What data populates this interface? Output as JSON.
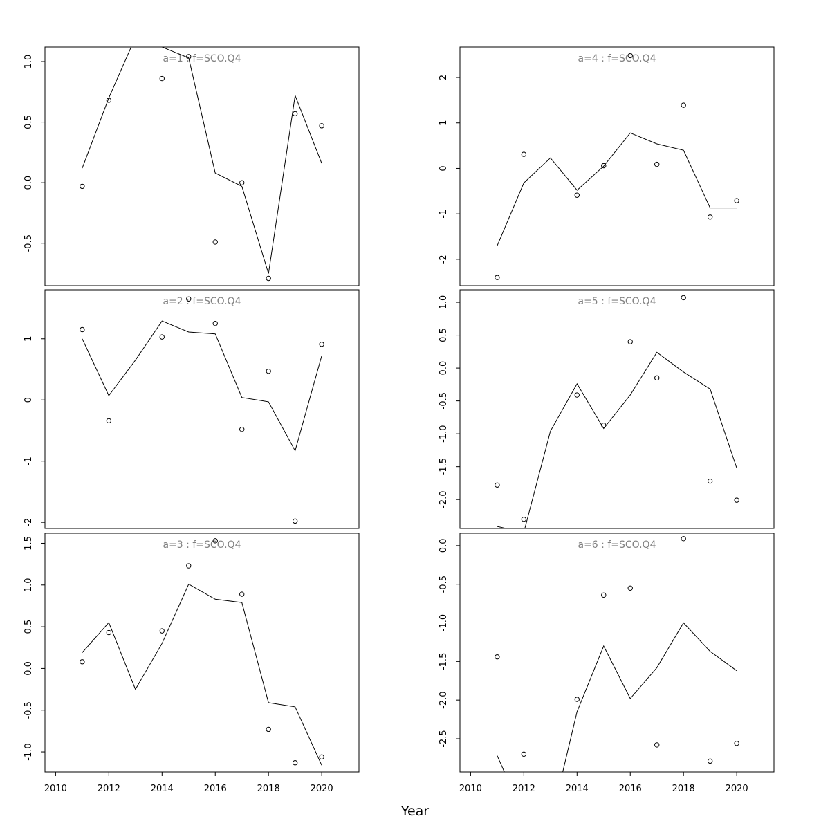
{
  "figure": {
    "xlabel": "Year"
  },
  "style": {
    "line_color": "#000000",
    "point_color": "#000000",
    "panel_title_color": "#808080",
    "axis_color": "#000000"
  },
  "chart_data": [
    {
      "type": "line",
      "panel": "a=1",
      "title": "a=1 : f=SCO.Q4",
      "xlim": [
        2009.6,
        2021.4
      ],
      "ylim": [
        -0.85,
        1.12
      ],
      "yticks": [
        -0.5,
        0.0,
        0.5,
        1.0
      ],
      "yticklabels": [
        "-0.5",
        "0.0",
        "0.5",
        "1.0"
      ],
      "xticks": [],
      "xticklabels": [],
      "series": [
        {
          "kind": "line",
          "x": [
            2011,
            2012,
            2013,
            2014,
            2015,
            2016,
            2017,
            2018,
            2019,
            2020
          ],
          "values": [
            0.12,
            0.7,
            1.2,
            1.12,
            1.03,
            0.08,
            -0.03,
            -0.75,
            0.72,
            0.16
          ]
        },
        {
          "kind": "points",
          "x": [
            2011,
            2012,
            2014,
            2015,
            2016,
            2017,
            2018,
            2019,
            2020
          ],
          "values": [
            -0.03,
            0.68,
            0.86,
            1.04,
            -0.49,
            0.0,
            -0.79,
            0.57,
            0.47
          ]
        }
      ]
    },
    {
      "type": "line",
      "panel": "a=2",
      "title": "a=2 : f=SCO.Q4",
      "xlim": [
        2009.6,
        2021.4
      ],
      "ylim": [
        -2.1,
        1.8
      ],
      "yticks": [
        -2,
        -1,
        0,
        1
      ],
      "yticklabels": [
        "-2",
        "-1",
        "0",
        "1"
      ],
      "xticks": [],
      "xticklabels": [],
      "series": [
        {
          "kind": "line",
          "x": [
            2011,
            2012,
            2013,
            2014,
            2015,
            2016,
            2017,
            2018,
            2019,
            2020
          ],
          "values": [
            1.0,
            0.07,
            0.65,
            1.29,
            1.11,
            1.08,
            0.04,
            -0.03,
            -0.83,
            0.72
          ]
        },
        {
          "kind": "points",
          "x": [
            2011,
            2012,
            2014,
            2015,
            2016,
            2017,
            2018,
            2019,
            2020
          ],
          "values": [
            1.15,
            -0.34,
            1.03,
            1.65,
            1.25,
            -0.48,
            0.47,
            -1.98,
            0.91
          ]
        }
      ]
    },
    {
      "type": "line",
      "panel": "a=3",
      "title": "a=3 : f=SCO.Q4",
      "xlim": [
        2009.6,
        2021.4
      ],
      "ylim": [
        -1.24,
        1.62
      ],
      "yticks": [
        -1.0,
        -0.5,
        0.0,
        0.5,
        1.0,
        1.5
      ],
      "yticklabels": [
        "-1.0",
        "-0.5",
        "0.0",
        "0.5",
        "1.0",
        "1.5"
      ],
      "xticks": [
        2010,
        2012,
        2014,
        2016,
        2018,
        2020
      ],
      "xticklabels": [
        "2010",
        "2012",
        "2014",
        "2016",
        "2018",
        "2020"
      ],
      "series": [
        {
          "kind": "line",
          "x": [
            2011,
            2012,
            2013,
            2014,
            2015,
            2016,
            2017,
            2018,
            2019,
            2020
          ],
          "values": [
            0.19,
            0.55,
            -0.25,
            0.3,
            1.01,
            0.83,
            0.79,
            -0.41,
            -0.46,
            -1.16
          ]
        },
        {
          "kind": "points",
          "x": [
            2011,
            2012,
            2014,
            2015,
            2016,
            2017,
            2018,
            2019,
            2020
          ],
          "values": [
            0.08,
            0.43,
            0.45,
            1.23,
            1.53,
            0.89,
            -0.73,
            -1.13,
            -1.06
          ]
        }
      ]
    },
    {
      "type": "line",
      "panel": "a=4",
      "title": "a=4 : f=SCO.Q4",
      "xlim": [
        2009.6,
        2021.4
      ],
      "ylim": [
        -2.58,
        2.67
      ],
      "yticks": [
        -2,
        -1,
        0,
        1,
        2
      ],
      "yticklabels": [
        "-2",
        "-1",
        "0",
        "1",
        "2"
      ],
      "xticks": [],
      "xticklabels": [],
      "series": [
        {
          "kind": "line",
          "x": [
            2011,
            2012,
            2013,
            2014,
            2015,
            2016,
            2017,
            2018,
            2019,
            2020
          ],
          "values": [
            -1.7,
            -0.32,
            0.23,
            -0.48,
            0.05,
            0.78,
            0.54,
            0.4,
            -0.87,
            -0.87
          ]
        },
        {
          "kind": "points",
          "x": [
            2011,
            2012,
            2014,
            2015,
            2016,
            2017,
            2018,
            2019,
            2020
          ],
          "values": [
            -2.4,
            0.31,
            -0.59,
            0.06,
            2.48,
            0.09,
            1.39,
            -1.07,
            -0.71
          ]
        }
      ]
    },
    {
      "type": "line",
      "panel": "a=5",
      "title": "a=5 : f=SCO.Q4",
      "xlim": [
        2009.6,
        2021.4
      ],
      "ylim": [
        -2.44,
        1.19
      ],
      "yticks": [
        -2.0,
        -1.5,
        -1.0,
        -0.5,
        0.0,
        0.5,
        1.0
      ],
      "yticklabels": [
        "-2.0",
        "-1.5",
        "-1.0",
        "-0.5",
        "0.0",
        "0.5",
        "1.0"
      ],
      "xticks": [],
      "xticklabels": [],
      "series": [
        {
          "kind": "line",
          "x": [
            2011,
            2012,
            2013,
            2014,
            2015,
            2016,
            2017,
            2018,
            2019,
            2020
          ],
          "values": [
            -2.41,
            -2.5,
            -0.96,
            -0.24,
            -0.92,
            -0.41,
            0.24,
            -0.06,
            -0.32,
            -1.52
          ]
        },
        {
          "kind": "points",
          "x": [
            2011,
            2012,
            2014,
            2015,
            2016,
            2017,
            2018,
            2019,
            2020
          ],
          "values": [
            -1.78,
            -2.3,
            -0.41,
            -0.87,
            0.4,
            -0.15,
            1.07,
            -1.72,
            -2.01
          ]
        }
      ]
    },
    {
      "type": "line",
      "panel": "a=6",
      "title": "a=6 : f=SCO.Q4",
      "xlim": [
        2009.6,
        2021.4
      ],
      "ylim": [
        -2.93,
        0.16
      ],
      "yticks": [
        -2.5,
        -2.0,
        -1.5,
        -1.0,
        -0.5,
        0.0
      ],
      "yticklabels": [
        "-2.5",
        "-2.0",
        "-1.5",
        "-1.0",
        "-0.5",
        "0.0"
      ],
      "xticks": [
        2010,
        2012,
        2014,
        2016,
        2018,
        2020
      ],
      "xticklabels": [
        "2010",
        "2012",
        "2014",
        "2016",
        "2018",
        "2020"
      ],
      "series": [
        {
          "kind": "line",
          "x": [
            2011,
            2012,
            2013,
            2014,
            2015,
            2016,
            2017,
            2018,
            2019,
            2020
          ],
          "values": [
            -2.72,
            -3.5,
            -3.6,
            -2.15,
            -1.3,
            -1.98,
            -1.58,
            -1.0,
            -1.37,
            -1.62
          ]
        },
        {
          "kind": "points",
          "x": [
            2011,
            2012,
            2014,
            2015,
            2016,
            2017,
            2018,
            2019,
            2020
          ],
          "values": [
            -1.44,
            -2.7,
            -1.99,
            -0.64,
            -0.55,
            -2.58,
            0.09,
            -2.79,
            -2.56
          ]
        }
      ]
    }
  ]
}
